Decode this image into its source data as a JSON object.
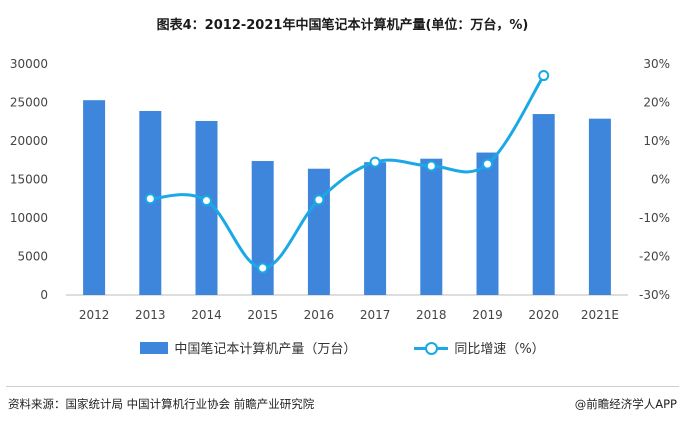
{
  "title": "图表4：2012-2021年中国笔记本计算机产量(单位：万台，%)",
  "chart_data": {
    "type": "bar",
    "categories": [
      "2012",
      "2013",
      "2014",
      "2015",
      "2016",
      "2017",
      "2018",
      "2019",
      "2020",
      "2021E"
    ],
    "series": [
      {
        "name": "中国笔记本计算机产量（万台）",
        "type": "bar",
        "axis": "left",
        "values": [
          25300,
          23900,
          22600,
          17400,
          16400,
          17250,
          17700,
          18500,
          23500,
          22900
        ]
      },
      {
        "name": "同比增速（%）",
        "type": "line",
        "axis": "right",
        "smooth": true,
        "values": [
          null,
          -5,
          -5.5,
          -23,
          -5.3,
          4.5,
          3.5,
          4,
          27,
          null
        ]
      }
    ],
    "y_left": {
      "ylim": [
        0,
        30000
      ],
      "ticks": [
        "0",
        "5000",
        "10000",
        "15000",
        "20000",
        "25000",
        "30000"
      ]
    },
    "y_right": {
      "ylim": [
        -30,
        30
      ],
      "ticks": [
        "-30%",
        "-20%",
        "-10%",
        "0%",
        "10%",
        "20%",
        "30%"
      ]
    },
    "grid": false,
    "legend": "bottom",
    "colors": {
      "bar": "#3d86dc",
      "line": "#1aa9e6"
    }
  },
  "legend": {
    "bar_label": "中国笔记本计算机产量（万台）",
    "line_label": "同比增速（%）"
  },
  "footer": {
    "source": "资料来源：国家统计局 中国计算机行业协会 前瞻产业研究院",
    "brand": "@前瞻经济学人APP"
  }
}
